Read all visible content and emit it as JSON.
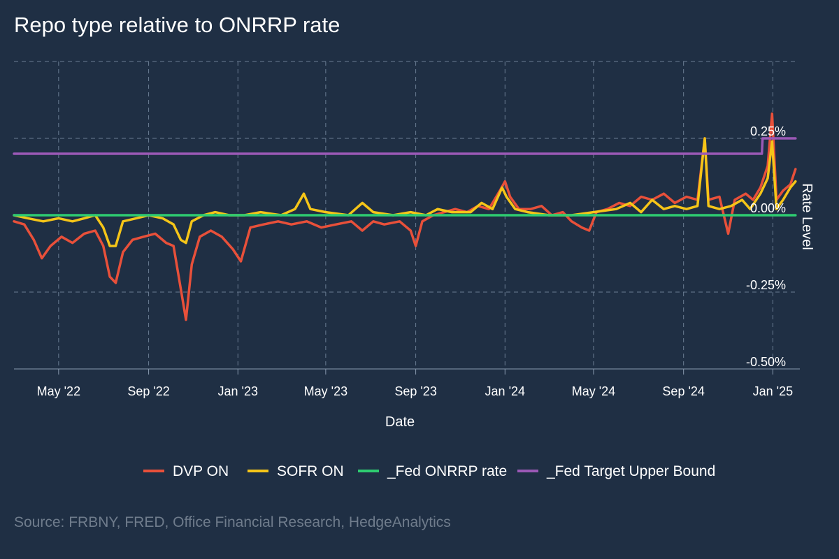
{
  "title": "Repo type relative to ONRRP rate",
  "source": "Source: FRBNY, FRED, Office Financial Research, HedgeAnalytics",
  "chart_data": {
    "type": "line",
    "title": "Repo type relative to ONRRP rate",
    "xlabel": "Date",
    "ylabel": "Rate Level",
    "x_range": [
      "2022-03-01",
      "2025-02-05"
    ],
    "ylim": [
      -0.5,
      0.5
    ],
    "y_ticks": [
      {
        "value": -0.5,
        "label": "-0.50%"
      },
      {
        "value": -0.25,
        "label": "-0.25%"
      },
      {
        "value": 0,
        "label": "0.00%"
      },
      {
        "value": 0.25,
        "label": "0.25%"
      }
    ],
    "x_ticks": [
      {
        "date": "2022-05-01",
        "label": "May '22"
      },
      {
        "date": "2022-09-01",
        "label": "Sep '22"
      },
      {
        "date": "2023-01-01",
        "label": "Jan '23"
      },
      {
        "date": "2023-05-01",
        "label": "May '23"
      },
      {
        "date": "2023-09-01",
        "label": "Sep '23"
      },
      {
        "date": "2024-01-01",
        "label": "Jan '24"
      },
      {
        "date": "2024-05-01",
        "label": "May '24"
      },
      {
        "date": "2024-09-01",
        "label": "Sep '24"
      },
      {
        "date": "2025-01-01",
        "label": "Jan '25"
      }
    ],
    "y_axis_side": "right",
    "grid": true,
    "legend_position": "bottom",
    "series": [
      {
        "name": "DVP ON",
        "color": "#e8503a",
        "points": [
          [
            "2022-03-01",
            -0.02
          ],
          [
            "2022-03-15",
            -0.03
          ],
          [
            "2022-03-28",
            -0.08
          ],
          [
            "2022-04-08",
            -0.14
          ],
          [
            "2022-04-20",
            -0.1
          ],
          [
            "2022-05-05",
            -0.07
          ],
          [
            "2022-05-20",
            -0.09
          ],
          [
            "2022-06-05",
            -0.06
          ],
          [
            "2022-06-20",
            -0.05
          ],
          [
            "2022-07-01",
            -0.1
          ],
          [
            "2022-07-10",
            -0.2
          ],
          [
            "2022-07-18",
            -0.22
          ],
          [
            "2022-07-28",
            -0.12
          ],
          [
            "2022-08-10",
            -0.08
          ],
          [
            "2022-08-25",
            -0.07
          ],
          [
            "2022-09-10",
            -0.06
          ],
          [
            "2022-09-25",
            -0.09
          ],
          [
            "2022-10-05",
            -0.1
          ],
          [
            "2022-10-15",
            -0.24
          ],
          [
            "2022-10-22",
            -0.34
          ],
          [
            "2022-10-30",
            -0.16
          ],
          [
            "2022-11-10",
            -0.07
          ],
          [
            "2022-11-25",
            -0.05
          ],
          [
            "2022-12-10",
            -0.07
          ],
          [
            "2022-12-25",
            -0.11
          ],
          [
            "2023-01-05",
            -0.15
          ],
          [
            "2023-01-18",
            -0.04
          ],
          [
            "2023-02-05",
            -0.03
          ],
          [
            "2023-02-25",
            -0.02
          ],
          [
            "2023-03-15",
            -0.03
          ],
          [
            "2023-04-05",
            -0.02
          ],
          [
            "2023-04-25",
            -0.04
          ],
          [
            "2023-05-15",
            -0.03
          ],
          [
            "2023-06-05",
            -0.02
          ],
          [
            "2023-06-20",
            -0.05
          ],
          [
            "2023-07-05",
            -0.02
          ],
          [
            "2023-07-20",
            -0.03
          ],
          [
            "2023-08-10",
            -0.02
          ],
          [
            "2023-08-25",
            -0.05
          ],
          [
            "2023-09-01",
            -0.1
          ],
          [
            "2023-09-10",
            -0.02
          ],
          [
            "2023-09-25",
            0.0
          ],
          [
            "2023-10-10",
            0.01
          ],
          [
            "2023-10-25",
            0.02
          ],
          [
            "2023-11-10",
            0.01
          ],
          [
            "2023-11-25",
            0.03
          ],
          [
            "2023-12-10",
            0.02
          ],
          [
            "2023-12-25",
            0.08
          ],
          [
            "2024-01-01",
            0.11
          ],
          [
            "2024-01-08",
            0.06
          ],
          [
            "2024-01-20",
            0.02
          ],
          [
            "2024-02-05",
            0.02
          ],
          [
            "2024-02-20",
            0.03
          ],
          [
            "2024-03-05",
            0.0
          ],
          [
            "2024-03-20",
            0.01
          ],
          [
            "2024-04-01",
            -0.02
          ],
          [
            "2024-04-15",
            -0.04
          ],
          [
            "2024-04-25",
            -0.05
          ],
          [
            "2024-05-05",
            0.01
          ],
          [
            "2024-05-20",
            0.02
          ],
          [
            "2024-06-05",
            0.04
          ],
          [
            "2024-06-20",
            0.03
          ],
          [
            "2024-07-05",
            0.06
          ],
          [
            "2024-07-20",
            0.05
          ],
          [
            "2024-08-05",
            0.07
          ],
          [
            "2024-08-20",
            0.04
          ],
          [
            "2024-09-05",
            0.06
          ],
          [
            "2024-09-20",
            0.05
          ],
          [
            "2024-09-30",
            0.25
          ],
          [
            "2024-10-05",
            0.05
          ],
          [
            "2024-10-20",
            0.06
          ],
          [
            "2024-11-01",
            -0.06
          ],
          [
            "2024-11-10",
            0.05
          ],
          [
            "2024-11-25",
            0.07
          ],
          [
            "2024-12-05",
            0.05
          ],
          [
            "2024-12-15",
            0.09
          ],
          [
            "2024-12-25",
            0.16
          ],
          [
            "2024-12-31",
            0.33
          ],
          [
            "2025-01-06",
            0.05
          ],
          [
            "2025-01-15",
            0.08
          ],
          [
            "2025-01-25",
            0.1
          ],
          [
            "2025-02-01",
            0.15
          ]
        ]
      },
      {
        "name": "SOFR ON",
        "color": "#f5c518",
        "points": [
          [
            "2022-03-01",
            0.0
          ],
          [
            "2022-03-20",
            -0.01
          ],
          [
            "2022-04-10",
            -0.02
          ],
          [
            "2022-05-01",
            -0.01
          ],
          [
            "2022-05-20",
            -0.02
          ],
          [
            "2022-06-05",
            -0.01
          ],
          [
            "2022-06-20",
            0.0
          ],
          [
            "2022-07-01",
            -0.04
          ],
          [
            "2022-07-10",
            -0.1
          ],
          [
            "2022-07-18",
            -0.1
          ],
          [
            "2022-07-28",
            -0.02
          ],
          [
            "2022-08-15",
            -0.01
          ],
          [
            "2022-09-01",
            0.0
          ],
          [
            "2022-09-20",
            -0.01
          ],
          [
            "2022-10-05",
            -0.03
          ],
          [
            "2022-10-15",
            -0.08
          ],
          [
            "2022-10-22",
            -0.09
          ],
          [
            "2022-10-30",
            -0.02
          ],
          [
            "2022-11-15",
            0.0
          ],
          [
            "2022-12-01",
            0.01
          ],
          [
            "2022-12-20",
            0.0
          ],
          [
            "2023-01-10",
            0.0
          ],
          [
            "2023-02-01",
            0.01
          ],
          [
            "2023-03-01",
            0.0
          ],
          [
            "2023-03-20",
            0.02
          ],
          [
            "2023-04-01",
            0.07
          ],
          [
            "2023-04-10",
            0.02
          ],
          [
            "2023-05-01",
            0.01
          ],
          [
            "2023-06-01",
            0.0
          ],
          [
            "2023-06-20",
            0.04
          ],
          [
            "2023-07-05",
            0.01
          ],
          [
            "2023-08-01",
            0.0
          ],
          [
            "2023-08-25",
            0.01
          ],
          [
            "2023-09-15",
            0.0
          ],
          [
            "2023-10-01",
            0.02
          ],
          [
            "2023-10-20",
            0.01
          ],
          [
            "2023-11-15",
            0.01
          ],
          [
            "2023-11-30",
            0.04
          ],
          [
            "2023-12-15",
            0.02
          ],
          [
            "2023-12-28",
            0.09
          ],
          [
            "2024-01-03",
            0.06
          ],
          [
            "2024-01-15",
            0.02
          ],
          [
            "2024-02-01",
            0.01
          ],
          [
            "2024-03-01",
            0.0
          ],
          [
            "2024-04-01",
            0.0
          ],
          [
            "2024-05-01",
            0.01
          ],
          [
            "2024-06-01",
            0.02
          ],
          [
            "2024-06-20",
            0.04
          ],
          [
            "2024-07-05",
            0.01
          ],
          [
            "2024-07-20",
            0.05
          ],
          [
            "2024-08-05",
            0.02
          ],
          [
            "2024-08-20",
            0.03
          ],
          [
            "2024-09-05",
            0.02
          ],
          [
            "2024-09-20",
            0.03
          ],
          [
            "2024-09-30",
            0.25
          ],
          [
            "2024-10-05",
            0.03
          ],
          [
            "2024-10-20",
            0.02
          ],
          [
            "2024-11-05",
            0.03
          ],
          [
            "2024-11-20",
            0.05
          ],
          [
            "2024-12-01",
            0.02
          ],
          [
            "2024-12-15",
            0.07
          ],
          [
            "2024-12-25",
            0.12
          ],
          [
            "2024-12-31",
            0.24
          ],
          [
            "2025-01-06",
            0.02
          ],
          [
            "2025-01-15",
            0.05
          ],
          [
            "2025-01-25",
            0.09
          ],
          [
            "2025-02-01",
            0.11
          ]
        ]
      },
      {
        "name": "_Fed ONRRP rate",
        "color": "#2ecc71",
        "points": [
          [
            "2022-03-01",
            0.0
          ],
          [
            "2025-02-01",
            0.0
          ]
        ]
      },
      {
        "name": "_Fed Target Upper Bound",
        "color": "#9b59b6",
        "points": [
          [
            "2022-03-01",
            0.2
          ],
          [
            "2024-12-17",
            0.2
          ],
          [
            "2024-12-18",
            0.25
          ],
          [
            "2025-02-01",
            0.25
          ]
        ]
      }
    ]
  }
}
